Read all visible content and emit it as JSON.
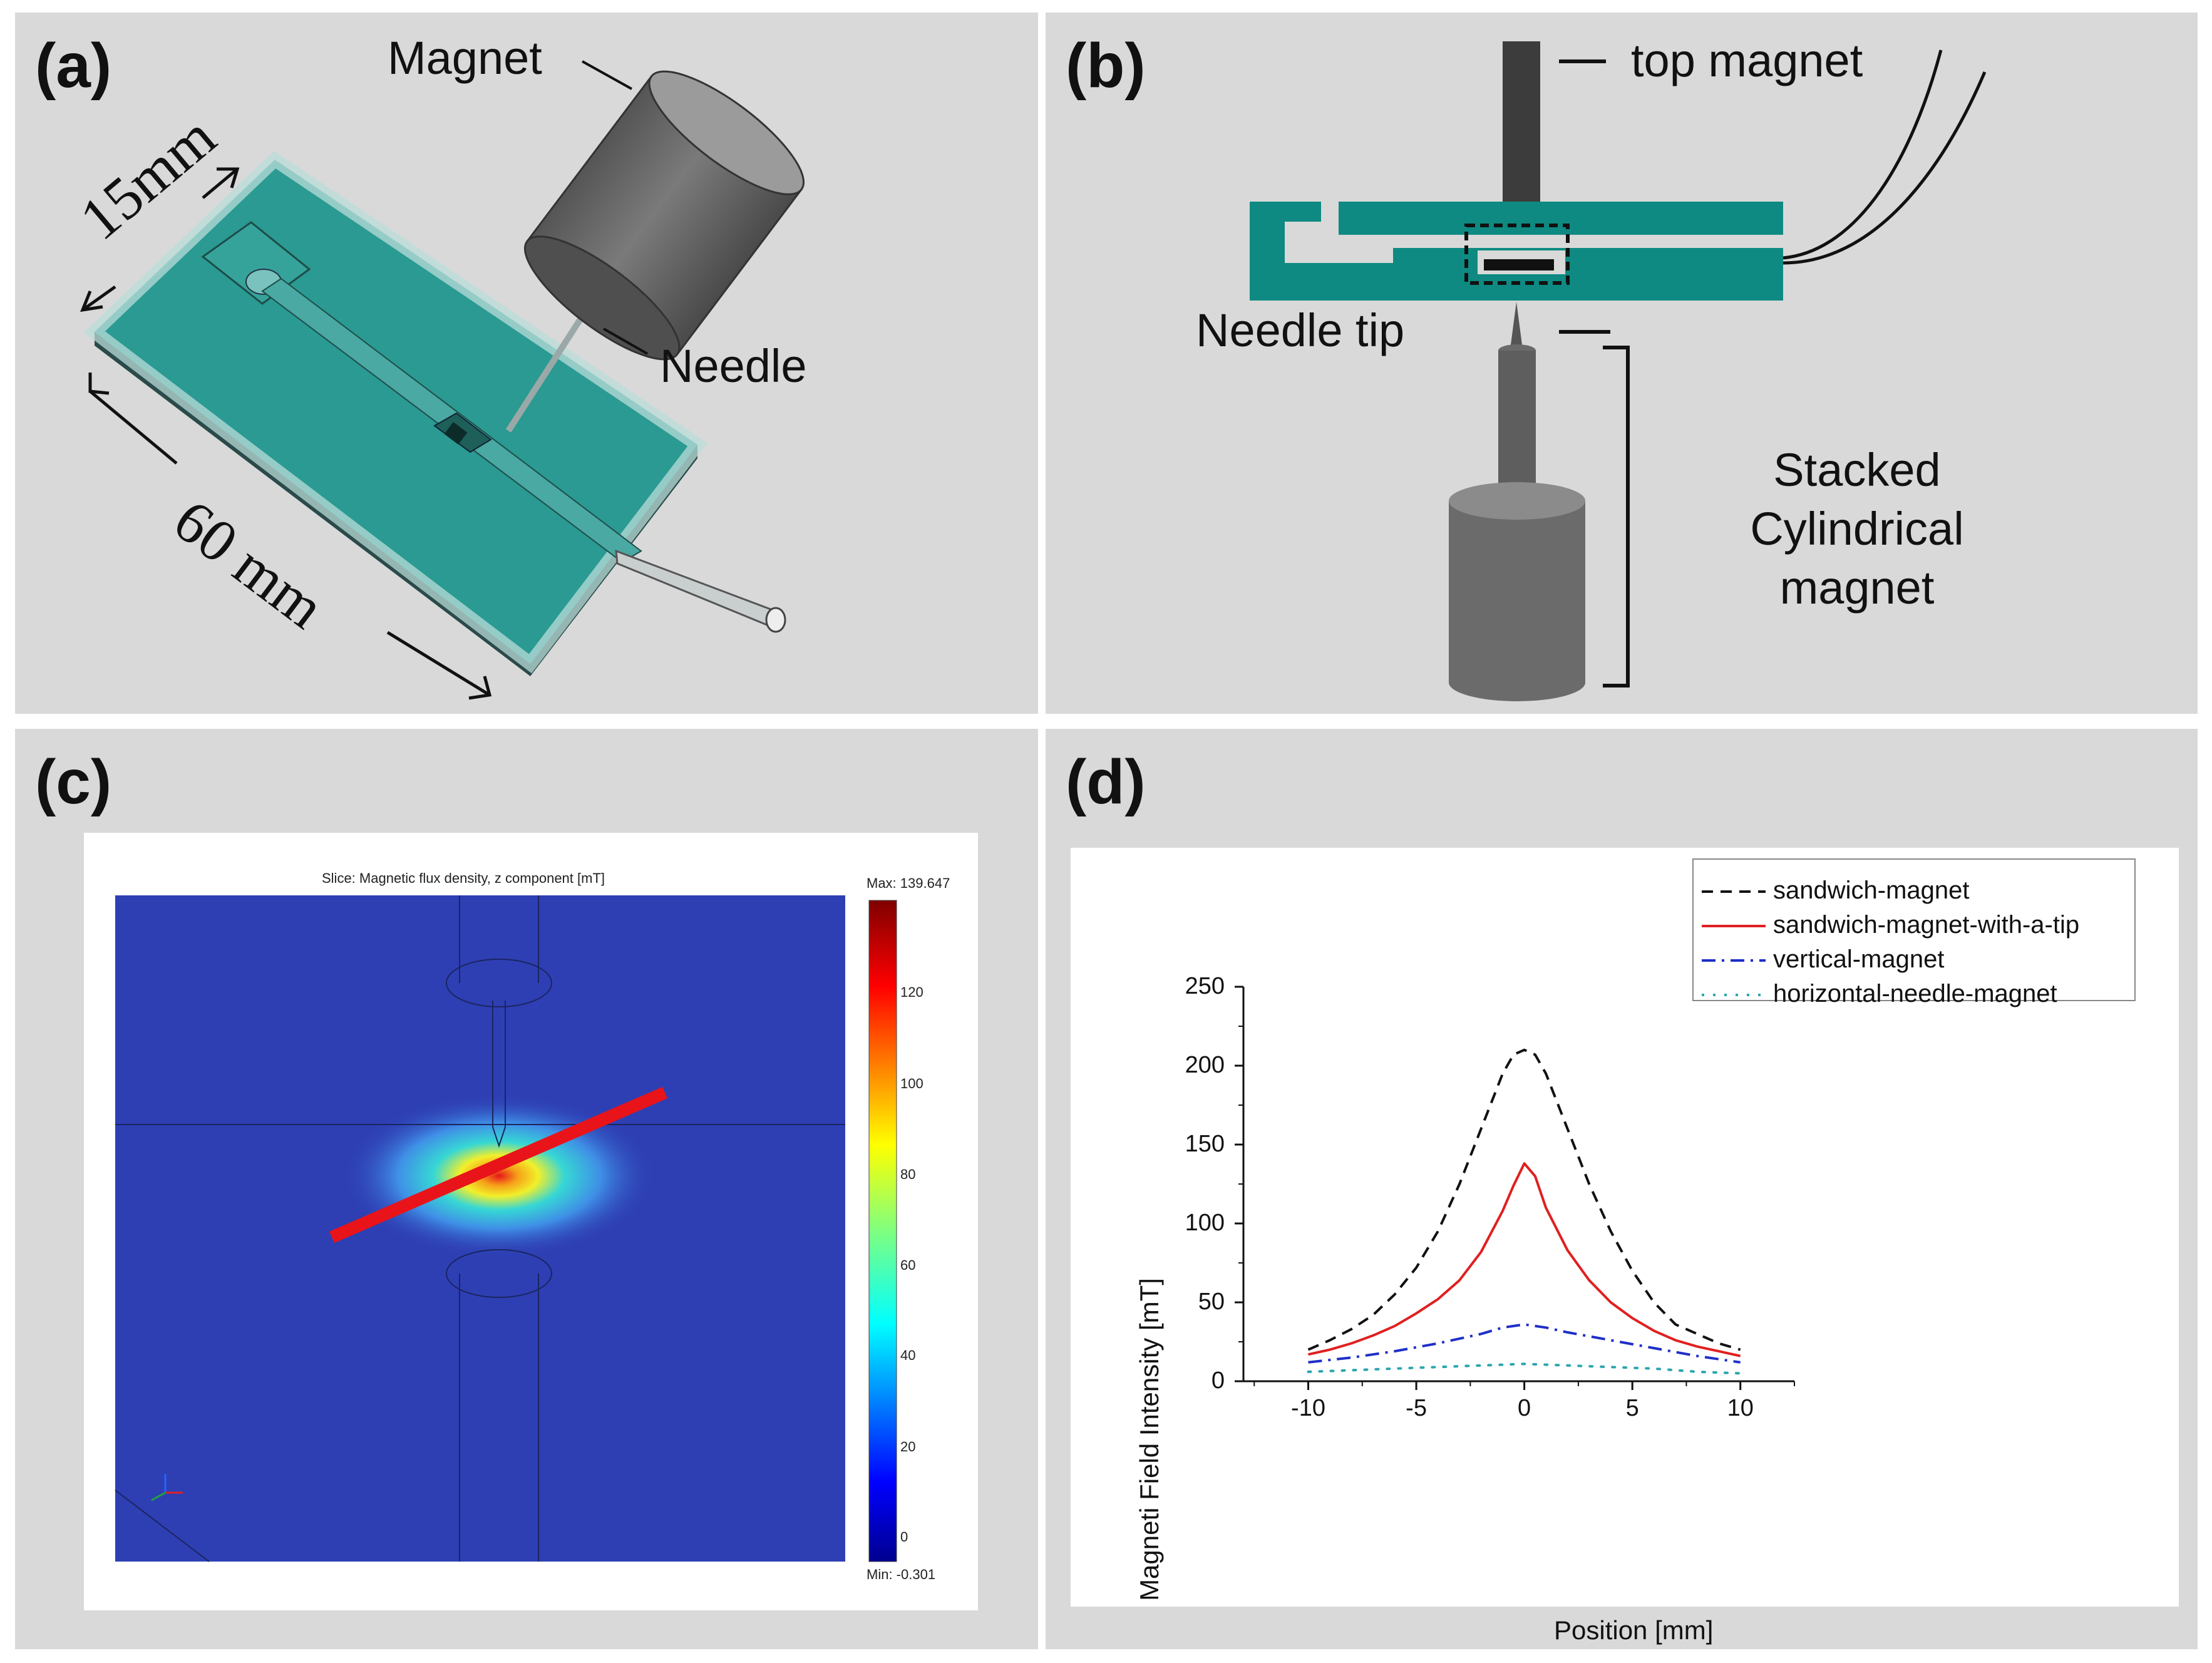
{
  "panel_a": {
    "letter": "(a)",
    "magnet_label": "Magnet",
    "needle_label": "Needle",
    "width_label": "15mm",
    "length_label": "60 mm"
  },
  "panel_b": {
    "letter": "(b)",
    "top_magnet_label": "top magnet",
    "needle_tip_label": "Needle tip",
    "stacked_label_line1": "Stacked",
    "stacked_label_line2": "Cylindrical",
    "stacked_label_line3": "magnet"
  },
  "panel_c": {
    "letter": "(c)",
    "slice_title": "Slice: Magnetic flux density, z component [mT]",
    "colorbar": {
      "max_label": "Max: 139.647",
      "min_label": "Min: -0.301",
      "ticks": [
        "120",
        "100",
        "80",
        "60",
        "40",
        "20",
        "0"
      ]
    },
    "colors": {
      "background_field": "#2e3fb4",
      "cut_line": "#e8141a"
    }
  },
  "panel_d": {
    "letter": "(d)"
  },
  "chart_data": {
    "type": "line",
    "xlabel": "Position [mm]",
    "ylabel": "Magneti Field Intensity [mT]",
    "xlim": [
      -13,
      12.5
    ],
    "ylim": [
      0,
      250
    ],
    "xticks": [
      -10,
      -5,
      0,
      5,
      10
    ],
    "yticks": [
      0,
      50,
      100,
      150,
      200,
      250
    ],
    "legend_position": "top-right",
    "series": [
      {
        "name": "sandwich-magnet",
        "color": "#111111",
        "style": "dash",
        "x": [
          -10,
          -9,
          -8,
          -7,
          -6,
          -5,
          -4,
          -3,
          -2,
          -1,
          -0.5,
          0,
          0.5,
          1,
          2,
          3,
          4,
          5,
          6,
          7,
          8,
          9,
          10
        ],
        "y": [
          20,
          26,
          33,
          42,
          55,
          72,
          95,
          125,
          160,
          195,
          207,
          210,
          207,
          195,
          160,
          125,
          95,
          70,
          50,
          36,
          30,
          24,
          20
        ]
      },
      {
        "name": "sandwich-magnet-with-a-tip",
        "color": "#e02020",
        "style": "solid",
        "x": [
          -10,
          -9,
          -8,
          -7,
          -6,
          -5,
          -4,
          -3,
          -2,
          -1,
          -0.5,
          0,
          0.5,
          1,
          2,
          3,
          4,
          5,
          6,
          7,
          8,
          9,
          10
        ],
        "y": [
          17,
          20,
          24,
          29,
          35,
          43,
          52,
          64,
          82,
          108,
          124,
          138,
          130,
          110,
          83,
          64,
          50,
          40,
          32,
          26,
          22,
          19,
          16
        ]
      },
      {
        "name": "vertical-magnet",
        "color": "#1f2fc8",
        "style": "dashdot",
        "x": [
          -10,
          -8,
          -6,
          -4,
          -2,
          -1,
          0,
          1,
          2,
          4,
          6,
          8,
          10
        ],
        "y": [
          12,
          15,
          19,
          24,
          30,
          34,
          36,
          34,
          31,
          26,
          21,
          16,
          12
        ]
      },
      {
        "name": "horizontal-needle-magnet",
        "color": "#2aa6ad",
        "style": "dot",
        "x": [
          -10,
          -8,
          -6,
          -4,
          -2,
          0,
          2,
          4,
          6,
          8,
          10
        ],
        "y": [
          6,
          7,
          8,
          9,
          10,
          11,
          10,
          9,
          8,
          6,
          5
        ]
      }
    ]
  }
}
